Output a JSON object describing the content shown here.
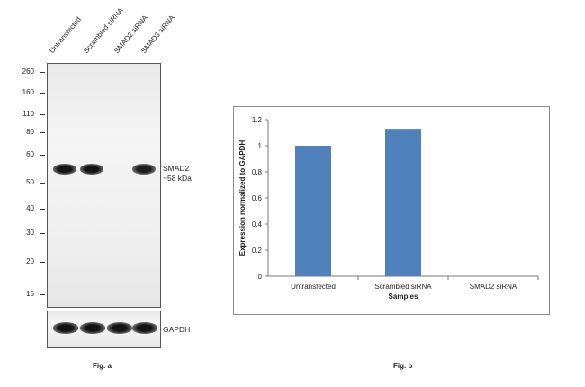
{
  "fig_a": {
    "caption": "Fig. a",
    "lanes": [
      "Untransfected",
      "Scrambled siRNA",
      "SMAD2 siRNA",
      "SMAD3 siRNA"
    ],
    "mw_markers": [
      "260",
      "160",
      "110",
      "80",
      "60",
      "50",
      "40",
      "30",
      "20",
      "15"
    ],
    "target_label": "SMAD2",
    "target_size": "~58 kDa",
    "loading_label": "GAPDH",
    "smad2_band_intensity": [
      1.0,
      1.0,
      0.0,
      0.85
    ],
    "gapdh_band_intensity": [
      1.0,
      1.0,
      1.0,
      1.0
    ]
  },
  "fig_b": {
    "caption": "Fig. b"
  },
  "chart_data": {
    "type": "bar",
    "categories": [
      "Untransfected",
      "Scrambled siRNA",
      "SMAD2 siRNA"
    ],
    "values": [
      1.0,
      1.13,
      0.0
    ],
    "xlabel": "Samples",
    "ylabel": "Expression normalized to GAPDH",
    "ylim": [
      0,
      1.2
    ],
    "yticks": [
      "0",
      "0.2",
      "0.4",
      "0.6",
      "0.8",
      "1",
      "1.2"
    ],
    "grid": false,
    "legend": "none",
    "bar_color": "#4f81bd"
  }
}
